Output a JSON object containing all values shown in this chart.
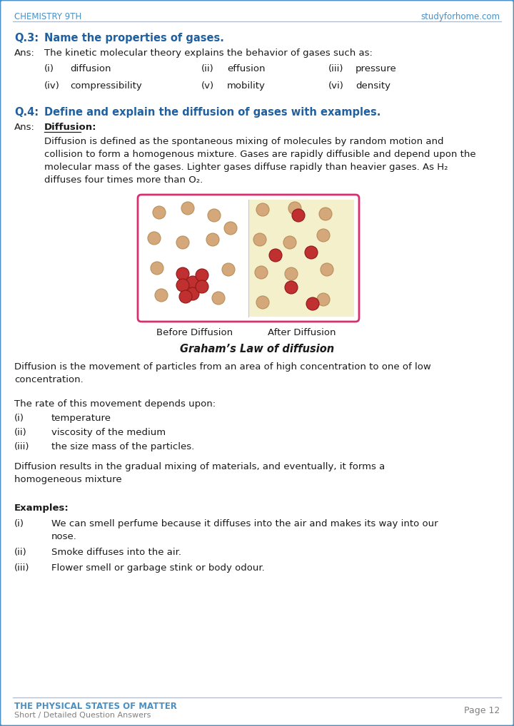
{
  "header_left": "CHEMISTRY 9TH",
  "header_right": "studyforhome.com",
  "header_color": "#4a90c4",
  "footer_left_line1": "THE PHYSICAL STATES OF MATTER",
  "footer_left_line2": "Short / Detailed Question Answers",
  "footer_right": "Page 12",
  "footer_color": "#4a90c4",
  "border_color": "#4a90c4",
  "q3_label": "Q.3:",
  "q3_text": "Name the properties of gases.",
  "q3_ans_intro": "The kinetic molecular theory explains the behavior of gases such as:",
  "q3_row1": [
    "(i)",
    "diffusion",
    "(ii)",
    "effusion",
    "(iii)",
    "pressure"
  ],
  "q3_row2": [
    "(iv)",
    "compressibility",
    "(v)",
    "mobility",
    "(vi)",
    "density"
  ],
  "q4_label": "Q.4:",
  "q4_text": "Define and explain the diffusion of gases with examples.",
  "q4_ans_label": "Diffusion",
  "graham_label": "Graham’s Law of diffusion",
  "q4_para3": "The rate of this movement depends upon:",
  "q4_rate_items": [
    "temperature",
    "viscosity of the medium",
    "the size mass of the particles."
  ],
  "examples_label": "Examples:",
  "question_color": "#2060a0",
  "text_color": "#1a1a1a",
  "bg_color": "#ffffff",
  "box_border_color": "#d63070",
  "box_right_bg": "#f5f0cc",
  "particle_tan_face": "#d4a87a",
  "particle_tan_edge": "#b8905a",
  "particle_red_face": "#c03030",
  "particle_red_edge": "#901818"
}
